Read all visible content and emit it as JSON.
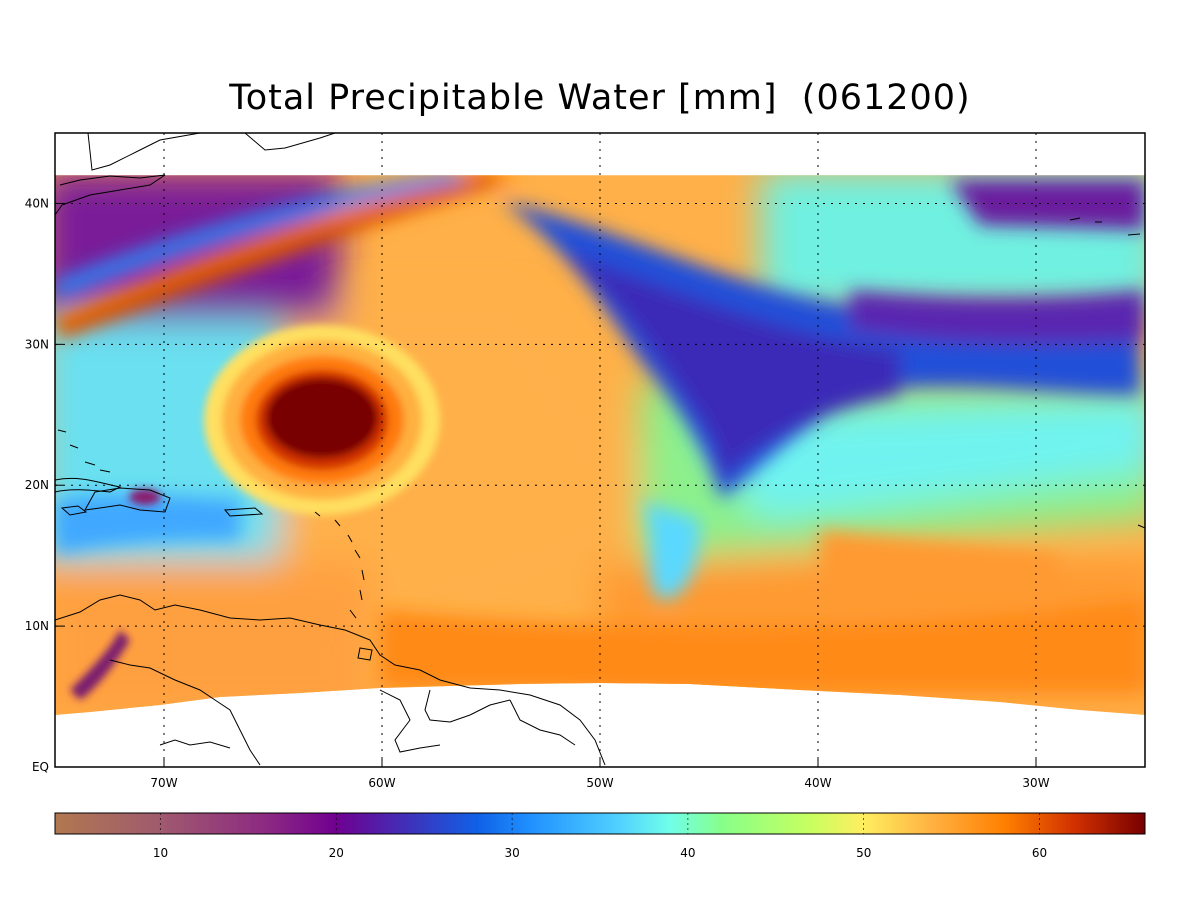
{
  "title": "Total Precipitable Water [mm]  (061200)",
  "map": {
    "lon_range": [
      -75,
      -25
    ],
    "lat_range": [
      0,
      45
    ],
    "data_lat_max": 42,
    "x_ticks": [
      {
        "lon": -70,
        "label": "70W"
      },
      {
        "lon": -60,
        "label": "60W"
      },
      {
        "lon": -50,
        "label": "50W"
      },
      {
        "lon": -40,
        "label": "40W"
      },
      {
        "lon": -30,
        "label": "30W"
      }
    ],
    "y_ticks": [
      {
        "lat": 0,
        "label": "EQ"
      },
      {
        "lat": 10,
        "label": "10N"
      },
      {
        "lat": 20,
        "label": "20N"
      },
      {
        "lat": 30,
        "label": "30N"
      },
      {
        "lat": 40,
        "label": "40N"
      }
    ],
    "grid": "dotted",
    "features": [
      {
        "name": "hurricane-core",
        "lon": -62.5,
        "lat": 24.5,
        "tpw": 66
      },
      {
        "name": "dry-trough",
        "lon": -43,
        "lat": 28,
        "tpw": 24
      }
    ]
  },
  "colorbar": {
    "min": 4,
    "max": 66,
    "ticks": [
      {
        "value": 10,
        "label": "10"
      },
      {
        "value": 20,
        "label": "20"
      },
      {
        "value": 30,
        "label": "30"
      },
      {
        "value": 40,
        "label": "40"
      },
      {
        "value": 50,
        "label": "50"
      },
      {
        "value": 60,
        "label": "60"
      }
    ],
    "stops": [
      {
        "value": 4,
        "color": "#b07850"
      },
      {
        "value": 10,
        "color": "#a05a6e"
      },
      {
        "value": 16,
        "color": "#8c2a82"
      },
      {
        "value": 20,
        "color": "#700090"
      },
      {
        "value": 24,
        "color": "#4030b8"
      },
      {
        "value": 28,
        "color": "#1060e6"
      },
      {
        "value": 31,
        "color": "#2090ff"
      },
      {
        "value": 36,
        "color": "#50d0ff"
      },
      {
        "value": 39,
        "color": "#70ffe8"
      },
      {
        "value": 42,
        "color": "#88ff88"
      },
      {
        "value": 47,
        "color": "#c8ff60"
      },
      {
        "value": 50,
        "color": "#ffee60"
      },
      {
        "value": 54,
        "color": "#ffb040"
      },
      {
        "value": 58,
        "color": "#ff8000"
      },
      {
        "value": 62,
        "color": "#d03000"
      },
      {
        "value": 66,
        "color": "#780000"
      }
    ]
  }
}
